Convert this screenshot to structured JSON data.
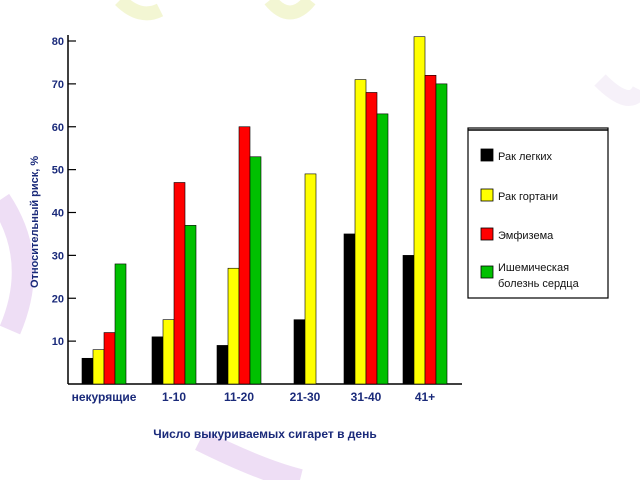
{
  "chart_data": {
    "type": "bar",
    "categories": [
      "некурящие",
      "1-10",
      "11-20",
      "21-30",
      "31-40",
      "41+"
    ],
    "series": [
      {
        "name": "Рак легких",
        "color": "#000000",
        "values": [
          6,
          11,
          9,
          15,
          35,
          30
        ]
      },
      {
        "name": "Рак гортани",
        "color": "#ffff00",
        "values": [
          8,
          15,
          27,
          49,
          71,
          81
        ]
      },
      {
        "name": "Эмфизема",
        "color": "#ff0000",
        "values": [
          12,
          47,
          60,
          null,
          68,
          72
        ]
      },
      {
        "name": "Ишемическая болезнь сердца",
        "color": "#00c000",
        "values": [
          28,
          37,
          53,
          null,
          63,
          70
        ]
      }
    ],
    "legend_lines": [
      [
        "Рак легких"
      ],
      [
        "Рак гортани"
      ],
      [
        "Эмфизема"
      ],
      [
        "Ишемическая",
        "болезнь сердца"
      ]
    ],
    "xlabel": "Число выкуриваемых сигарет в день",
    "ylabel": "Относительный риск, %",
    "yticks": [
      10,
      20,
      30,
      40,
      50,
      60,
      70,
      80
    ],
    "ylim": [
      0,
      85
    ],
    "legend_position": "right",
    "grid": false
  }
}
